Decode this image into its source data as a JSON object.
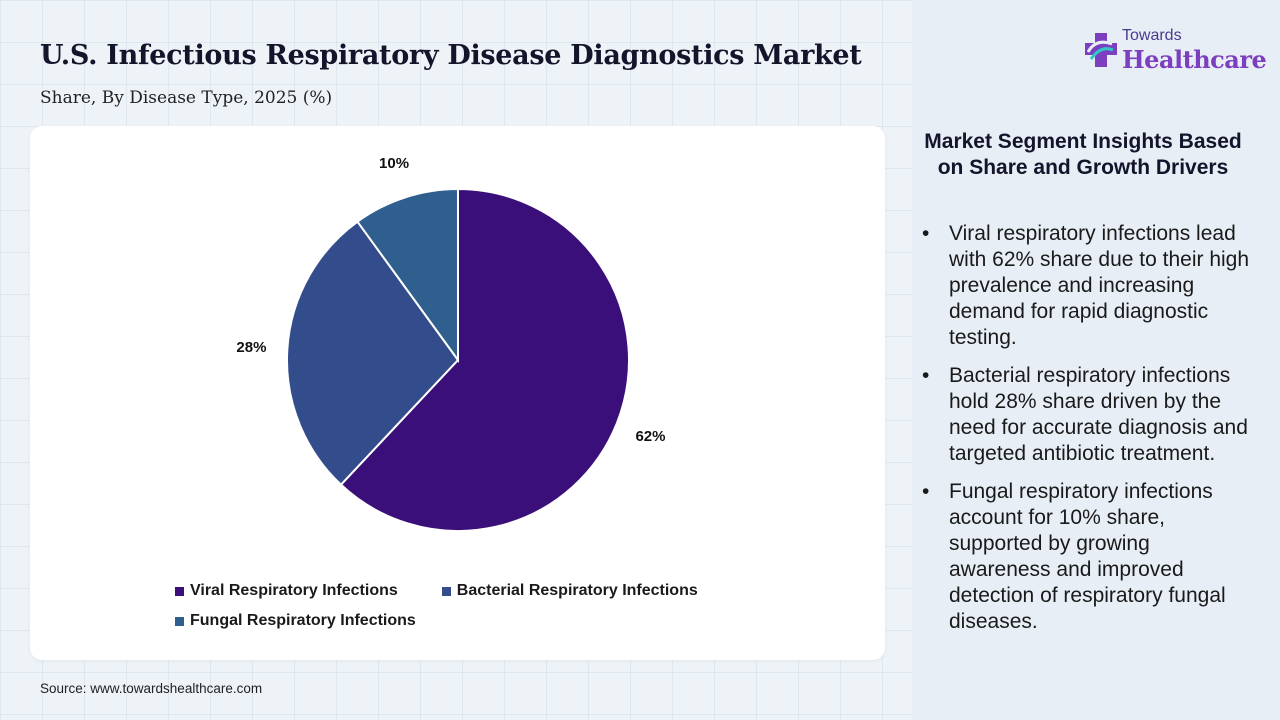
{
  "header": {
    "title": "U.S. Infectious Respiratory Disease Diagnostics Market",
    "subtitle": "Share, By Disease Type, 2025 (%)"
  },
  "chart_data": {
    "type": "pie",
    "title": "U.S. Infectious Respiratory Disease Diagnostics Market",
    "subtitle": "Share, By Disease Type, 2025 (%)",
    "categories": [
      "Viral Respiratory Infections",
      "Bacterial Respiratory Infections",
      "Fungal Respiratory Infections"
    ],
    "values": [
      62,
      28,
      10
    ],
    "labels": [
      "62%",
      "28%",
      "10%"
    ],
    "colors": [
      "#3b0f7a",
      "#334d8c",
      "#2f5f8e"
    ],
    "legend": "bottom"
  },
  "source": "Source: www.towardshealthcare.com",
  "logo": {
    "line1": "Towards",
    "line2": "Healthcare"
  },
  "insights": {
    "title": "Market Segment Insights Based on Share and Growth Drivers",
    "bullet_symbol": "•",
    "items": [
      "Viral respiratory infections lead with 62% share due to their high prevalence and increasing demand for rapid diagnostic testing.",
      "Bacterial respiratory infections hold 28% share driven by the need for accurate diagnosis and targeted antibiotic treatment.",
      "Fungal respiratory infections account for 10% share, supported by growing awareness and improved detection of respiratory fungal diseases."
    ]
  }
}
